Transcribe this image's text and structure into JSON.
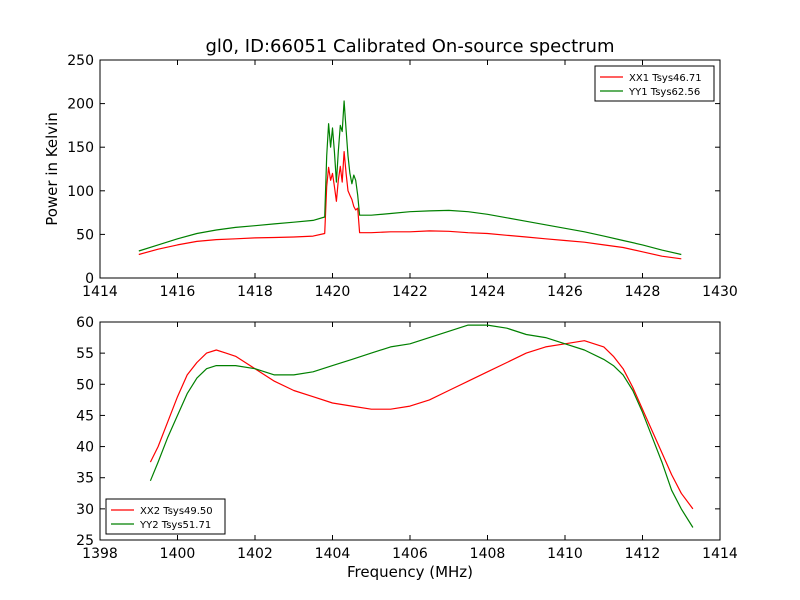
{
  "chart_data": [
    {
      "type": "line",
      "title": "gl0, ID:66051 Calibrated On-source spectrum",
      "xlabel": "",
      "ylabel": "Power in Kelvin",
      "xlim": [
        1414,
        1430
      ],
      "ylim": [
        0,
        250
      ],
      "xticks": [
        "1414",
        "1416",
        "1418",
        "1420",
        "1422",
        "1424",
        "1426",
        "1428",
        "1430"
      ],
      "yticks": [
        "0",
        "50",
        "100",
        "150",
        "200",
        "250"
      ],
      "legend_position": "top-right",
      "series": [
        {
          "name": "XX1 Tsys46.71",
          "color": "#ff0000",
          "x": [
            1415.0,
            1415.5,
            1416.0,
            1416.5,
            1417.0,
            1417.5,
            1418.0,
            1418.5,
            1419.0,
            1419.5,
            1419.8,
            1419.85,
            1419.9,
            1419.95,
            1420.0,
            1420.05,
            1420.1,
            1420.15,
            1420.2,
            1420.25,
            1420.3,
            1420.35,
            1420.4,
            1420.45,
            1420.5,
            1420.55,
            1420.6,
            1420.65,
            1420.7,
            1421.0,
            1421.5,
            1422.0,
            1422.5,
            1423.0,
            1423.5,
            1424.0,
            1424.5,
            1425.0,
            1425.5,
            1426.0,
            1426.5,
            1427.0,
            1427.5,
            1428.0,
            1428.5,
            1429.0
          ],
          "y": [
            27,
            33,
            38,
            42,
            44,
            45,
            46,
            46.5,
            47,
            48,
            51,
            105,
            127,
            112,
            120,
            105,
            88,
            112,
            128,
            110,
            145,
            120,
            100,
            95,
            90,
            82,
            78,
            80,
            52,
            52,
            53,
            53,
            54,
            53.5,
            52,
            51,
            49,
            47,
            45,
            43,
            41,
            38,
            35,
            30,
            25,
            22
          ]
        },
        {
          "name": "YY1 Tsys62.56",
          "color": "#008000",
          "x": [
            1415.0,
            1415.5,
            1416.0,
            1416.5,
            1417.0,
            1417.5,
            1418.0,
            1418.5,
            1419.0,
            1419.5,
            1419.8,
            1419.85,
            1419.9,
            1419.95,
            1420.0,
            1420.05,
            1420.1,
            1420.15,
            1420.2,
            1420.25,
            1420.3,
            1420.35,
            1420.4,
            1420.45,
            1420.5,
            1420.55,
            1420.6,
            1420.65,
            1420.7,
            1421.0,
            1421.5,
            1422.0,
            1422.5,
            1423.0,
            1423.5,
            1424.0,
            1424.5,
            1425.0,
            1425.5,
            1426.0,
            1426.5,
            1427.0,
            1427.5,
            1428.0,
            1428.5,
            1429.0
          ],
          "y": [
            31,
            38,
            45,
            51,
            55,
            58,
            60,
            62,
            64,
            66,
            70,
            140,
            177,
            150,
            172,
            145,
            110,
            145,
            175,
            168,
            203,
            170,
            140,
            120,
            108,
            118,
            112,
            95,
            72,
            72,
            74,
            76,
            77,
            77.5,
            76,
            73,
            69,
            65,
            61,
            57,
            53,
            48,
            43,
            38,
            32,
            27
          ]
        }
      ]
    },
    {
      "type": "line",
      "title": "",
      "xlabel": "Frequency (MHz)",
      "ylabel": "",
      "xlim": [
        1398,
        1414
      ],
      "ylim": [
        25,
        60
      ],
      "xticks": [
        "1398",
        "1400",
        "1402",
        "1404",
        "1406",
        "1408",
        "1410",
        "1412",
        "1414"
      ],
      "yticks": [
        "25",
        "30",
        "35",
        "40",
        "45",
        "50",
        "55",
        "60"
      ],
      "legend_position": "bottom-left",
      "series": [
        {
          "name": "XX2 Tsys49.50",
          "color": "#ff0000",
          "x": [
            1399.3,
            1399.5,
            1399.75,
            1400.0,
            1400.25,
            1400.5,
            1400.75,
            1401.0,
            1401.25,
            1401.5,
            1401.75,
            1402.0,
            1402.5,
            1403.0,
            1403.5,
            1404.0,
            1404.5,
            1405.0,
            1405.5,
            1406.0,
            1406.5,
            1407.0,
            1407.5,
            1408.0,
            1408.5,
            1409.0,
            1409.5,
            1410.0,
            1410.5,
            1411.0,
            1411.25,
            1411.5,
            1411.75,
            1412.0,
            1412.25,
            1412.5,
            1412.75,
            1413.0,
            1413.3
          ],
          "y": [
            37.5,
            40,
            44,
            48,
            51.5,
            53.5,
            55,
            55.5,
            55,
            54.5,
            53.5,
            52.5,
            50.5,
            49,
            48,
            47,
            46.5,
            46,
            46,
            46.5,
            47.5,
            49,
            50.5,
            52,
            53.5,
            55,
            56,
            56.5,
            57,
            56,
            54.5,
            52.5,
            49.5,
            46,
            42.5,
            39,
            35.5,
            32.5,
            30
          ]
        },
        {
          "name": "YY2 Tsys51.71",
          "color": "#008000",
          "x": [
            1399.3,
            1399.5,
            1399.75,
            1400.0,
            1400.25,
            1400.5,
            1400.75,
            1401.0,
            1401.5,
            1402.0,
            1402.5,
            1403.0,
            1403.5,
            1404.0,
            1404.5,
            1405.0,
            1405.5,
            1406.0,
            1406.5,
            1407.0,
            1407.5,
            1408.0,
            1408.5,
            1409.0,
            1409.5,
            1410.0,
            1410.5,
            1411.0,
            1411.25,
            1411.5,
            1411.75,
            1412.0,
            1412.25,
            1412.5,
            1412.75,
            1413.0,
            1413.3
          ],
          "y": [
            34.5,
            37.5,
            41.5,
            45,
            48.5,
            51,
            52.5,
            53,
            53,
            52.5,
            51.5,
            51.5,
            52,
            53,
            54,
            55,
            56,
            56.5,
            57.5,
            58.5,
            59.5,
            59.5,
            59,
            58,
            57.5,
            56.5,
            55.5,
            54,
            53,
            51.5,
            49,
            45.5,
            41.5,
            37.5,
            33,
            30,
            27
          ]
        }
      ]
    }
  ]
}
